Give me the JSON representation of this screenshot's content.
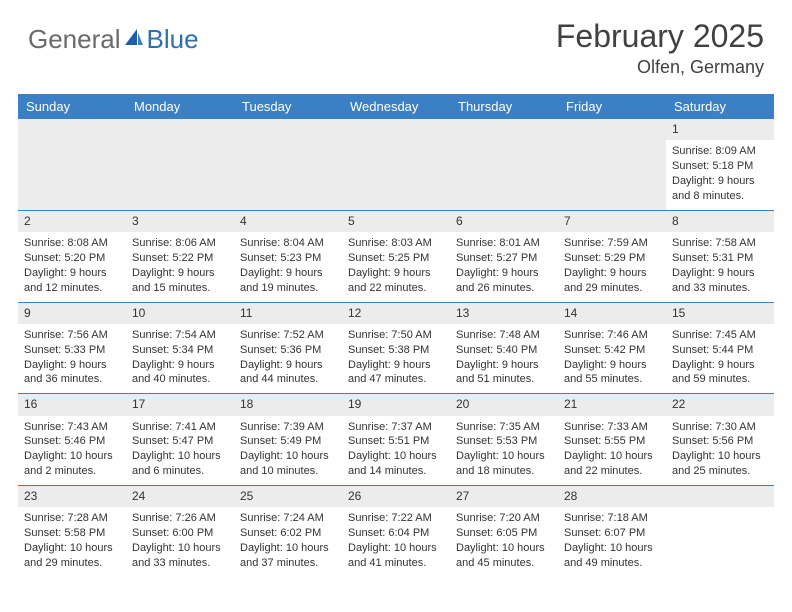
{
  "logo": {
    "general": "General",
    "blue": "Blue"
  },
  "title": "February 2025",
  "location": "Olfen, Germany",
  "colors": {
    "header_bg": "#3b7fc4",
    "header_text": "#ffffff",
    "row_divider": "#3b7fc4",
    "daynum_bg": "#ececec",
    "text": "#333333",
    "logo_gray": "#6a6a6a",
    "logo_blue": "#2f6fb0",
    "title_color": "#414141",
    "page_bg": "#ffffff"
  },
  "day_headers": [
    "Sunday",
    "Monday",
    "Tuesday",
    "Wednesday",
    "Thursday",
    "Friday",
    "Saturday"
  ],
  "weeks": [
    {
      "nums": [
        "",
        "",
        "",
        "",
        "",
        "",
        "1"
      ],
      "cells": [
        null,
        null,
        null,
        null,
        null,
        null,
        {
          "sunrise": "Sunrise: 8:09 AM",
          "sunset": "Sunset: 5:18 PM",
          "day1": "Daylight: 9 hours",
          "day2": "and 8 minutes."
        }
      ]
    },
    {
      "nums": [
        "2",
        "3",
        "4",
        "5",
        "6",
        "7",
        "8"
      ],
      "cells": [
        {
          "sunrise": "Sunrise: 8:08 AM",
          "sunset": "Sunset: 5:20 PM",
          "day1": "Daylight: 9 hours",
          "day2": "and 12 minutes."
        },
        {
          "sunrise": "Sunrise: 8:06 AM",
          "sunset": "Sunset: 5:22 PM",
          "day1": "Daylight: 9 hours",
          "day2": "and 15 minutes."
        },
        {
          "sunrise": "Sunrise: 8:04 AM",
          "sunset": "Sunset: 5:23 PM",
          "day1": "Daylight: 9 hours",
          "day2": "and 19 minutes."
        },
        {
          "sunrise": "Sunrise: 8:03 AM",
          "sunset": "Sunset: 5:25 PM",
          "day1": "Daylight: 9 hours",
          "day2": "and 22 minutes."
        },
        {
          "sunrise": "Sunrise: 8:01 AM",
          "sunset": "Sunset: 5:27 PM",
          "day1": "Daylight: 9 hours",
          "day2": "and 26 minutes."
        },
        {
          "sunrise": "Sunrise: 7:59 AM",
          "sunset": "Sunset: 5:29 PM",
          "day1": "Daylight: 9 hours",
          "day2": "and 29 minutes."
        },
        {
          "sunrise": "Sunrise: 7:58 AM",
          "sunset": "Sunset: 5:31 PM",
          "day1": "Daylight: 9 hours",
          "day2": "and 33 minutes."
        }
      ]
    },
    {
      "nums": [
        "9",
        "10",
        "11",
        "12",
        "13",
        "14",
        "15"
      ],
      "cells": [
        {
          "sunrise": "Sunrise: 7:56 AM",
          "sunset": "Sunset: 5:33 PM",
          "day1": "Daylight: 9 hours",
          "day2": "and 36 minutes."
        },
        {
          "sunrise": "Sunrise: 7:54 AM",
          "sunset": "Sunset: 5:34 PM",
          "day1": "Daylight: 9 hours",
          "day2": "and 40 minutes."
        },
        {
          "sunrise": "Sunrise: 7:52 AM",
          "sunset": "Sunset: 5:36 PM",
          "day1": "Daylight: 9 hours",
          "day2": "and 44 minutes."
        },
        {
          "sunrise": "Sunrise: 7:50 AM",
          "sunset": "Sunset: 5:38 PM",
          "day1": "Daylight: 9 hours",
          "day2": "and 47 minutes."
        },
        {
          "sunrise": "Sunrise: 7:48 AM",
          "sunset": "Sunset: 5:40 PM",
          "day1": "Daylight: 9 hours",
          "day2": "and 51 minutes."
        },
        {
          "sunrise": "Sunrise: 7:46 AM",
          "sunset": "Sunset: 5:42 PM",
          "day1": "Daylight: 9 hours",
          "day2": "and 55 minutes."
        },
        {
          "sunrise": "Sunrise: 7:45 AM",
          "sunset": "Sunset: 5:44 PM",
          "day1": "Daylight: 9 hours",
          "day2": "and 59 minutes."
        }
      ]
    },
    {
      "nums": [
        "16",
        "17",
        "18",
        "19",
        "20",
        "21",
        "22"
      ],
      "cells": [
        {
          "sunrise": "Sunrise: 7:43 AM",
          "sunset": "Sunset: 5:46 PM",
          "day1": "Daylight: 10 hours",
          "day2": "and 2 minutes."
        },
        {
          "sunrise": "Sunrise: 7:41 AM",
          "sunset": "Sunset: 5:47 PM",
          "day1": "Daylight: 10 hours",
          "day2": "and 6 minutes."
        },
        {
          "sunrise": "Sunrise: 7:39 AM",
          "sunset": "Sunset: 5:49 PM",
          "day1": "Daylight: 10 hours",
          "day2": "and 10 minutes."
        },
        {
          "sunrise": "Sunrise: 7:37 AM",
          "sunset": "Sunset: 5:51 PM",
          "day1": "Daylight: 10 hours",
          "day2": "and 14 minutes."
        },
        {
          "sunrise": "Sunrise: 7:35 AM",
          "sunset": "Sunset: 5:53 PM",
          "day1": "Daylight: 10 hours",
          "day2": "and 18 minutes."
        },
        {
          "sunrise": "Sunrise: 7:33 AM",
          "sunset": "Sunset: 5:55 PM",
          "day1": "Daylight: 10 hours",
          "day2": "and 22 minutes."
        },
        {
          "sunrise": "Sunrise: 7:30 AM",
          "sunset": "Sunset: 5:56 PM",
          "day1": "Daylight: 10 hours",
          "day2": "and 25 minutes."
        }
      ]
    },
    {
      "nums": [
        "23",
        "24",
        "25",
        "26",
        "27",
        "28",
        ""
      ],
      "cells": [
        {
          "sunrise": "Sunrise: 7:28 AM",
          "sunset": "Sunset: 5:58 PM",
          "day1": "Daylight: 10 hours",
          "day2": "and 29 minutes."
        },
        {
          "sunrise": "Sunrise: 7:26 AM",
          "sunset": "Sunset: 6:00 PM",
          "day1": "Daylight: 10 hours",
          "day2": "and 33 minutes."
        },
        {
          "sunrise": "Sunrise: 7:24 AM",
          "sunset": "Sunset: 6:02 PM",
          "day1": "Daylight: 10 hours",
          "day2": "and 37 minutes."
        },
        {
          "sunrise": "Sunrise: 7:22 AM",
          "sunset": "Sunset: 6:04 PM",
          "day1": "Daylight: 10 hours",
          "day2": "and 41 minutes."
        },
        {
          "sunrise": "Sunrise: 7:20 AM",
          "sunset": "Sunset: 6:05 PM",
          "day1": "Daylight: 10 hours",
          "day2": "and 45 minutes."
        },
        {
          "sunrise": "Sunrise: 7:18 AM",
          "sunset": "Sunset: 6:07 PM",
          "day1": "Daylight: 10 hours",
          "day2": "and 49 minutes."
        },
        null
      ]
    }
  ]
}
